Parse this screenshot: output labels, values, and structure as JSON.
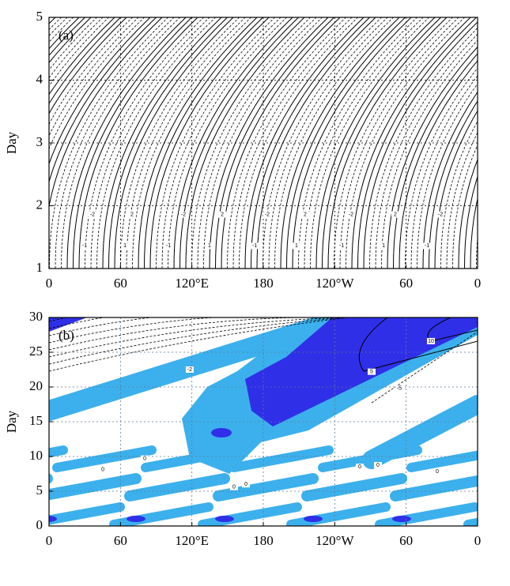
{
  "chart_data": [
    {
      "type": "contour",
      "panel_label": "(a)",
      "y_label": "Day",
      "xlim": [
        0,
        360
      ],
      "ylim": [
        1,
        5
      ],
      "xticks": [
        0,
        60,
        {
          "value": 120,
          "label": "120°E"
        },
        180,
        {
          "value": 240,
          "label": "120°W"
        },
        {
          "value": 300,
          "label": "60"
        },
        {
          "value": 360,
          "label": "0"
        }
      ],
      "yticks": [
        1,
        2,
        3,
        4,
        5
      ],
      "grid": true,
      "contour_labels": [
        {
          "text": "-2",
          "x": 36.5,
          "y": 1.86
        },
        {
          "text": "-2",
          "x": 112.9,
          "y": 1.86
        },
        {
          "text": "-2",
          "x": 183.3,
          "y": 1.86
        },
        {
          "text": "-2",
          "x": 253.7,
          "y": 1.86
        },
        {
          "text": "-2",
          "x": 328.8,
          "y": 1.86
        },
        {
          "text": "2",
          "x": 69.7,
          "y": 1.86
        },
        {
          "text": "2",
          "x": 145.5,
          "y": 1.86
        },
        {
          "text": "2",
          "x": 215.2,
          "y": 1.86
        },
        {
          "text": "2",
          "x": 290.9,
          "y": 1.86
        },
        {
          "text": "-1",
          "x": 29.9,
          "y": 1.36
        },
        {
          "text": "-1",
          "x": 100.3,
          "y": 1.36
        },
        {
          "text": "-1",
          "x": 172.7,
          "y": 1.36
        },
        {
          "text": "-1",
          "x": 245.8,
          "y": 1.36
        },
        {
          "text": "-1",
          "x": 317.5,
          "y": 1.36
        },
        {
          "text": "1",
          "x": 63.8,
          "y": 1.36
        },
        {
          "text": "1",
          "x": 134.8,
          "y": 1.36
        },
        {
          "text": "1",
          "x": 207.9,
          "y": 1.36
        },
        {
          "text": "1",
          "x": 281.0,
          "y": 1.36
        }
      ]
    },
    {
      "type": "contour",
      "panel_label": "(b)",
      "y_label": "Day",
      "xlim": [
        0,
        360
      ],
      "ylim": [
        0,
        30
      ],
      "xticks": [
        0,
        60,
        {
          "value": 120,
          "label": "120°E"
        },
        180,
        {
          "value": 240,
          "label": "120°W"
        },
        {
          "value": 300,
          "label": "60"
        },
        {
          "value": 360,
          "label": "0"
        }
      ],
      "yticks": [
        0,
        5,
        10,
        15,
        20,
        25,
        30
      ],
      "grid": true,
      "fill_colors": [
        "#3cb0ec",
        "#2f2fe8"
      ],
      "contour_labels": [
        {
          "text": "10",
          "x": 320.8,
          "y": 26.6
        },
        {
          "text": "5",
          "x": 271.0,
          "y": 22.2
        },
        {
          "text": "-5",
          "x": 294.2,
          "y": 19.8
        },
        {
          "text": "-2",
          "x": 118.2,
          "y": 22.5
        },
        {
          "text": "0",
          "x": 45.2,
          "y": 8.1
        },
        {
          "text": "0",
          "x": 80.4,
          "y": 9.7
        },
        {
          "text": "0",
          "x": 155.4,
          "y": 5.6
        },
        {
          "text": "0",
          "x": 165.4,
          "y": 6.0
        },
        {
          "text": "0",
          "x": 261.0,
          "y": 8.5
        },
        {
          "text": "0",
          "x": 276.3,
          "y": 8.75
        },
        {
          "text": "0",
          "x": 326.1,
          "y": 7.8
        }
      ]
    }
  ]
}
